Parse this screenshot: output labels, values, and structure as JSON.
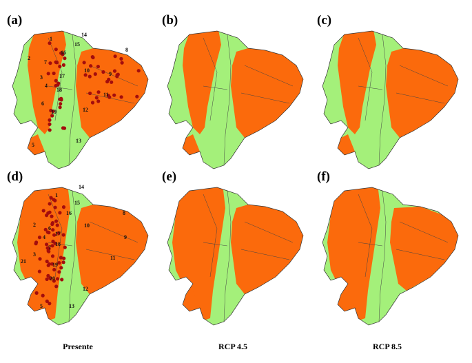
{
  "panels": [
    {
      "label": "(a)",
      "region_labels": [
        "1",
        "2",
        "3",
        "4",
        "5",
        "6",
        "7",
        "8",
        "9",
        "10",
        "11",
        "12",
        "13",
        "14",
        "15",
        "16",
        "17",
        "18",
        "19"
      ]
    },
    {
      "label": "(b)"
    },
    {
      "label": "(c)"
    },
    {
      "label": "(d)",
      "region_labels": [
        "1",
        "2",
        "3",
        "4",
        "5",
        "6",
        "7",
        "8",
        "9",
        "10",
        "11",
        "12",
        "13",
        "14",
        "15",
        "16",
        "17",
        "18",
        "19",
        "20",
        "21"
      ]
    },
    {
      "label": "(e)"
    },
    {
      "label": "(f)"
    }
  ],
  "columns": [
    "Presente",
    "RCP 4.5",
    "RCP 8.5"
  ]
}
